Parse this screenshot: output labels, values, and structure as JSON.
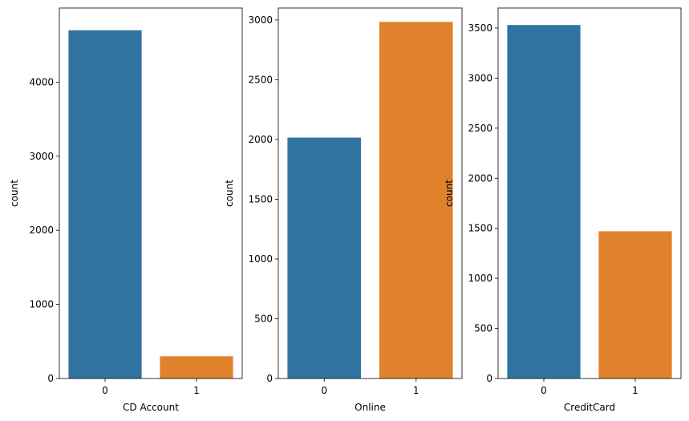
{
  "colors": {
    "class_0": "#3274a1",
    "class_1": "#e1812c",
    "axis": "#000000",
    "background": "#ffffff"
  },
  "chart_data": [
    {
      "type": "bar",
      "categories": [
        "0",
        "1"
      ],
      "values": [
        4700,
        300
      ],
      "xlabel": "CD Account",
      "ylabel": "count",
      "ylim": [
        0,
        5000
      ],
      "yticks": [
        0,
        1000,
        2000,
        3000,
        4000
      ],
      "grid": false,
      "colors": [
        "#3274a1",
        "#e1812c"
      ]
    },
    {
      "type": "bar",
      "categories": [
        "0",
        "1"
      ],
      "values": [
        2016,
        2984
      ],
      "xlabel": "Online",
      "ylabel": "count",
      "ylim": [
        0,
        3100
      ],
      "yticks": [
        0,
        500,
        1000,
        1500,
        2000,
        2500,
        3000
      ],
      "grid": false,
      "colors": [
        "#3274a1",
        "#e1812c"
      ]
    },
    {
      "type": "bar",
      "categories": [
        "0",
        "1"
      ],
      "values": [
        3530,
        1470
      ],
      "xlabel": "CreditCard",
      "ylabel": "count",
      "ylim": [
        0,
        3700
      ],
      "yticks": [
        0,
        500,
        1000,
        1500,
        2000,
        2500,
        3000,
        3500
      ],
      "grid": false,
      "colors": [
        "#3274a1",
        "#e1812c"
      ]
    }
  ]
}
